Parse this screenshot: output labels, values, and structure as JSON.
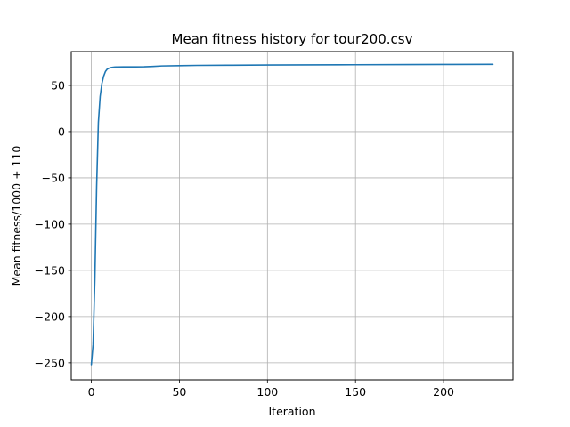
{
  "chart_data": {
    "type": "line",
    "title": "Mean fitness history for tour200.csv",
    "xlabel": "Iteration",
    "ylabel": "Mean fitness/1000 + 110",
    "xlim": [
      -11.4,
      239.4
    ],
    "ylim": [
      -268.4,
      86.5
    ],
    "xticks": [
      0,
      50,
      100,
      150,
      200
    ],
    "yticks": [
      -250,
      -200,
      -150,
      -100,
      -50,
      0,
      50
    ],
    "grid": true,
    "line_color": "#1f77b4",
    "series": [
      {
        "x": [
          0,
          1,
          2,
          3,
          4,
          5,
          6,
          7,
          8,
          9,
          10,
          11,
          12,
          13,
          14,
          15,
          18,
          20,
          25,
          30,
          35,
          40,
          50,
          60,
          80,
          100,
          120,
          150,
          180,
          200,
          228
        ],
        "y": [
          -252,
          -230,
          -160,
          -60,
          10,
          38,
          52,
          60,
          65,
          67.5,
          68.5,
          69.2,
          69.5,
          69.7,
          69.8,
          69.9,
          70,
          70,
          70,
          70.1,
          70.5,
          71,
          71.3,
          71.6,
          71.8,
          72,
          72.1,
          72.3,
          72.5,
          72.6,
          72.7
        ]
      }
    ]
  }
}
